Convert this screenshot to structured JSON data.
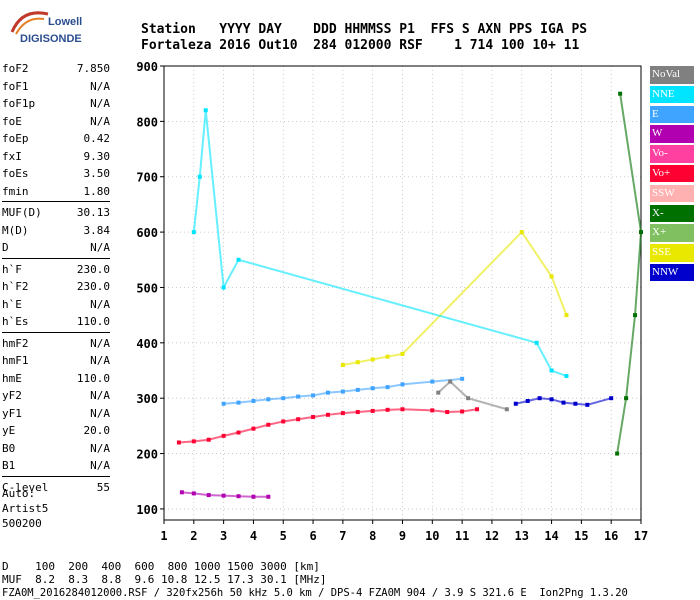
{
  "logo": {
    "line1": "Lowell",
    "line2": "DIGISONDE"
  },
  "header": {
    "line1": "Station   YYYY DAY    DDD HHMMSS P1  FFS S AXN PPS IGA PS",
    "line2": "Fortaleza 2016 Out10  284 012000 RSF    1 714 100 10+ 11"
  },
  "params": [
    [
      [
        "foF2",
        "7.850"
      ],
      [
        "foF1",
        "N/A"
      ],
      [
        "foF1p",
        "N/A"
      ],
      [
        "foE",
        "N/A"
      ],
      [
        "foEp",
        "0.42"
      ],
      [
        "fxI",
        "9.30"
      ],
      [
        "foEs",
        "3.50"
      ],
      [
        "fmin",
        "1.80"
      ]
    ],
    [
      [
        "MUF(D)",
        "30.13"
      ],
      [
        "M(D)",
        "3.84"
      ],
      [
        "D",
        "N/A"
      ]
    ],
    [
      [
        "h`F",
        "230.0"
      ],
      [
        "h`F2",
        "230.0"
      ],
      [
        "h`E",
        "N/A"
      ],
      [
        "h`Es",
        "110.0"
      ]
    ],
    [
      [
        "hmF2",
        "N/A"
      ],
      [
        "hmF1",
        "N/A"
      ],
      [
        "hmE",
        "110.0"
      ],
      [
        "yF2",
        "N/A"
      ],
      [
        "yF1",
        "N/A"
      ],
      [
        "yE",
        "20.0"
      ],
      [
        "B0",
        "N/A"
      ],
      [
        "B1",
        "N/A"
      ]
    ],
    [
      [
        "C-level",
        "55"
      ]
    ]
  ],
  "auto": {
    "line1": "Auto:",
    "line2": "Artist5",
    "line3": "500200"
  },
  "footer": {
    "line1": "D    100  200  400  600  800 1000 1500 3000 [km]",
    "line2": "MUF  8.2  8.3  8.8  9.6 10.8 12.5 17.3 30.1 [MHz]",
    "line3": "FZA0M_2016284012000.RSF / 320fx256h 50 kHz 5.0 km / DPS-4 FZA0M 904 / 3.9 S 321.6 E  Ion2Png 1.3.20"
  },
  "legend": [
    {
      "label": "NoVal",
      "color": "#808080"
    },
    {
      "label": "NNE",
      "color": "#00e5ff"
    },
    {
      "label": "E",
      "color": "#3fa4ff"
    },
    {
      "label": "W",
      "color": "#b000b0"
    },
    {
      "label": "Vo-",
      "color": "#ff40a0"
    },
    {
      "label": "Vo+",
      "color": "#ff0033"
    },
    {
      "label": "SSW",
      "color": "#ffb0b0"
    },
    {
      "label": "X-",
      "color": "#007000"
    },
    {
      "label": "X+",
      "color": "#80c060"
    },
    {
      "label": "SSE",
      "color": "#e8e800"
    },
    {
      "label": "NNW",
      "color": "#0000cc"
    }
  ],
  "chart_data": {
    "type": "scatter",
    "title": "",
    "xlabel": "",
    "ylabel": "",
    "xlim": [
      1,
      17
    ],
    "ylim": [
      80,
      900
    ],
    "x_ticks": [
      1,
      2,
      3,
      4,
      5,
      6,
      7,
      8,
      9,
      10,
      11,
      12,
      13,
      14,
      15,
      16,
      17
    ],
    "y_ticks": [
      100,
      200,
      300,
      400,
      500,
      600,
      700,
      800,
      900
    ],
    "y_tick_labels": [
      "100",
      "200",
      "300",
      "400",
      "500",
      "600",
      "700",
      "800",
      "900"
    ],
    "grid": "dotted",
    "series": [
      {
        "name": "Vo+",
        "color": "#ff0033",
        "points": [
          [
            1.5,
            220
          ],
          [
            2.0,
            222
          ],
          [
            2.5,
            225
          ],
          [
            3.0,
            232
          ],
          [
            3.5,
            238
          ],
          [
            4.0,
            245
          ],
          [
            4.5,
            252
          ],
          [
            5.0,
            258
          ],
          [
            5.5,
            262
          ],
          [
            6.0,
            266
          ],
          [
            6.5,
            270
          ],
          [
            7.0,
            273
          ],
          [
            7.5,
            275
          ],
          [
            8.0,
            277
          ],
          [
            8.5,
            279
          ],
          [
            9.0,
            280
          ],
          [
            10.0,
            278
          ],
          [
            10.5,
            275
          ],
          [
            11.0,
            276
          ],
          [
            11.5,
            280
          ]
        ]
      },
      {
        "name": "E",
        "color": "#3fa4ff",
        "points": [
          [
            3.0,
            290
          ],
          [
            3.5,
            292
          ],
          [
            4.0,
            295
          ],
          [
            4.5,
            298
          ],
          [
            5.0,
            300
          ],
          [
            5.5,
            303
          ],
          [
            6.0,
            305
          ],
          [
            6.5,
            310
          ],
          [
            7.0,
            312
          ],
          [
            7.5,
            315
          ],
          [
            8.0,
            318
          ],
          [
            8.5,
            320
          ],
          [
            9.0,
            325
          ],
          [
            10.0,
            330
          ],
          [
            11.0,
            335
          ]
        ]
      },
      {
        "name": "NNW",
        "color": "#0000cc",
        "points": [
          [
            12.8,
            290
          ],
          [
            13.2,
            295
          ],
          [
            13.6,
            300
          ],
          [
            14.0,
            298
          ],
          [
            14.4,
            292
          ],
          [
            14.8,
            290
          ],
          [
            15.2,
            288
          ],
          [
            16.0,
            300
          ]
        ]
      },
      {
        "name": "W",
        "color": "#b000b0",
        "points": [
          [
            1.6,
            130
          ],
          [
            2.0,
            128
          ],
          [
            2.5,
            125
          ],
          [
            3.0,
            124
          ],
          [
            3.5,
            123
          ],
          [
            4.0,
            122
          ],
          [
            4.5,
            122
          ]
        ]
      },
      {
        "name": "SSE",
        "color": "#e8e800",
        "points": [
          [
            7.0,
            360
          ],
          [
            7.5,
            365
          ],
          [
            8.0,
            370
          ],
          [
            8.5,
            375
          ],
          [
            9.0,
            380
          ],
          [
            13.0,
            600
          ],
          [
            14.0,
            520
          ],
          [
            14.5,
            450
          ]
        ]
      },
      {
        "name": "NNE",
        "color": "#00e5ff",
        "points": [
          [
            2.0,
            600
          ],
          [
            2.2,
            700
          ],
          [
            2.4,
            820
          ],
          [
            3.0,
            500
          ],
          [
            3.5,
            550
          ],
          [
            13.5,
            400
          ],
          [
            14.0,
            350
          ],
          [
            14.5,
            340
          ]
        ]
      },
      {
        "name": "X-",
        "color": "#007000",
        "points": [
          [
            16.2,
            200
          ],
          [
            16.5,
            300
          ],
          [
            16.8,
            450
          ],
          [
            17.0,
            600
          ],
          [
            16.3,
            850
          ]
        ]
      },
      {
        "name": "NoVal",
        "color": "#808080",
        "points": [
          [
            10.2,
            310
          ],
          [
            10.6,
            330
          ],
          [
            11.2,
            300
          ],
          [
            12.5,
            280
          ]
        ]
      }
    ]
  }
}
